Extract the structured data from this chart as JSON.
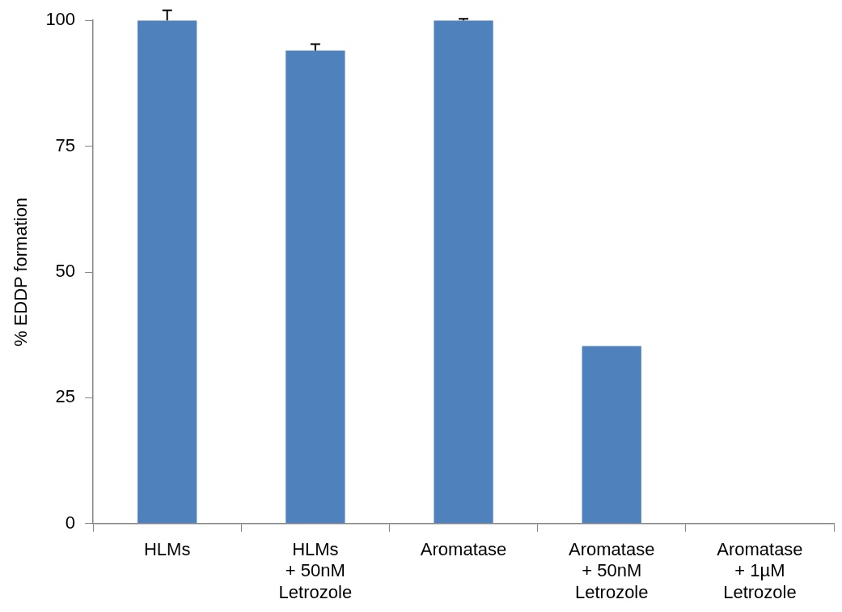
{
  "chart_data": {
    "type": "bar",
    "ylabel": "% EDDP formation",
    "categories": [
      "HLMs",
      "HLMs\n+ 50nM\nLetrozole",
      "Aromatase",
      "Aromatase\n+ 50nM\nLetrozole",
      "Aromatase\n+ 1µM\nLetrozole"
    ],
    "values": [
      100,
      94,
      100,
      35.3,
      0
    ],
    "errors": [
      [
        100,
        102
      ],
      [
        94,
        95.3
      ],
      [
        100,
        100.3
      ],
      null,
      null
    ],
    "color": "#4f81bd",
    "ylim": [
      0,
      100
    ],
    "yticks": [
      0,
      25,
      50,
      75,
      100
    ],
    "grid": false,
    "legend": false
  }
}
